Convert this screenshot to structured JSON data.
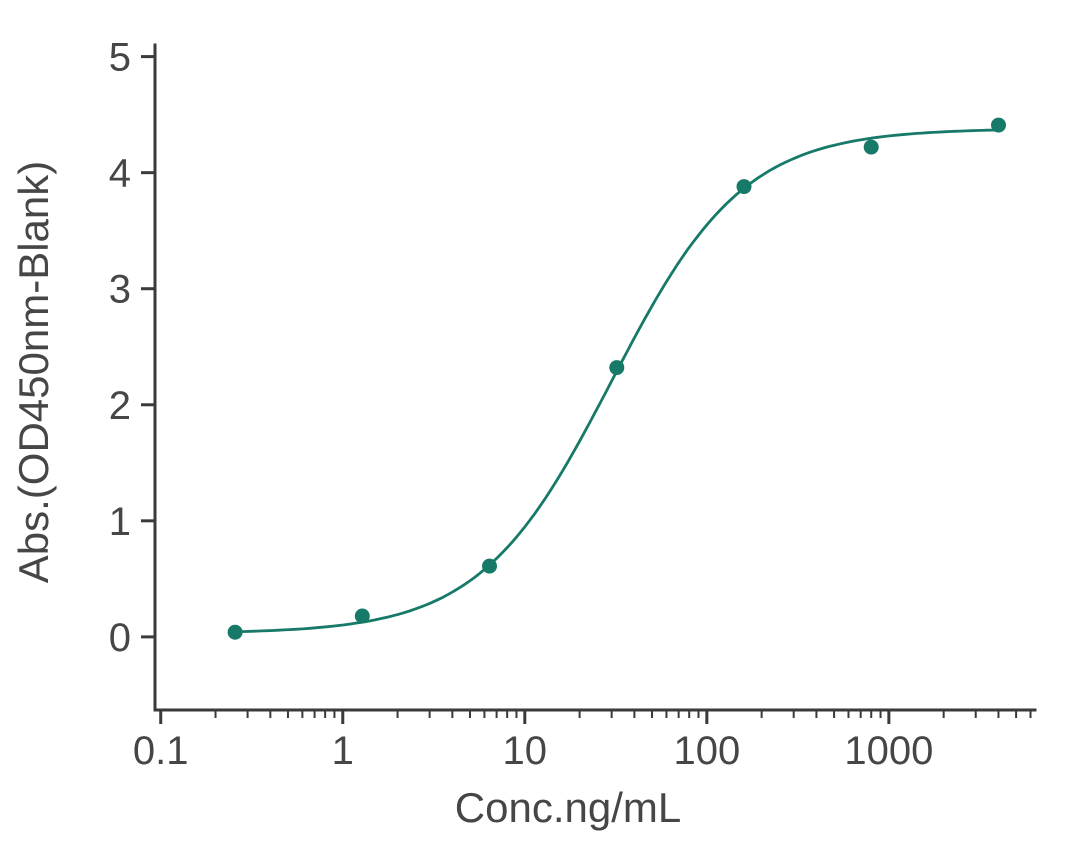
{
  "chart_data": {
    "type": "scatter",
    "title": "",
    "xlabel": "Conc.ng/mL",
    "ylabel": "Abs.(OD450nm-Blank)",
    "x_scale": "log10",
    "xlim": [
      0.093,
      6350
    ],
    "ylim": [
      -0.63,
      5.1
    ],
    "x_ticks": [
      0.1,
      1,
      10,
      100,
      1000
    ],
    "x_tick_labels": [
      "0.1",
      "1",
      "10",
      "100",
      "1000"
    ],
    "y_ticks": [
      0,
      1,
      2,
      3,
      4,
      5
    ],
    "y_tick_labels": [
      "0",
      "1",
      "2",
      "3",
      "4",
      "5"
    ],
    "points": [
      {
        "x": 0.256,
        "y": 0.04
      },
      {
        "x": 1.28,
        "y": 0.18
      },
      {
        "x": 6.4,
        "y": 0.61
      },
      {
        "x": 32,
        "y": 2.32
      },
      {
        "x": 160,
        "y": 3.88
      },
      {
        "x": 800,
        "y": 4.22
      },
      {
        "x": 4000,
        "y": 4.41
      }
    ],
    "fit_curve": {
      "model": "4PL",
      "bottom": 0.03,
      "top": 4.38,
      "ec50": 30,
      "hill": 1.2,
      "x_start": 0.256,
      "x_end": 4000
    },
    "grid": false,
    "legend": null,
    "colors": {
      "series": "#177a68",
      "axis": "#3a3a3a",
      "text": "#464646"
    }
  }
}
